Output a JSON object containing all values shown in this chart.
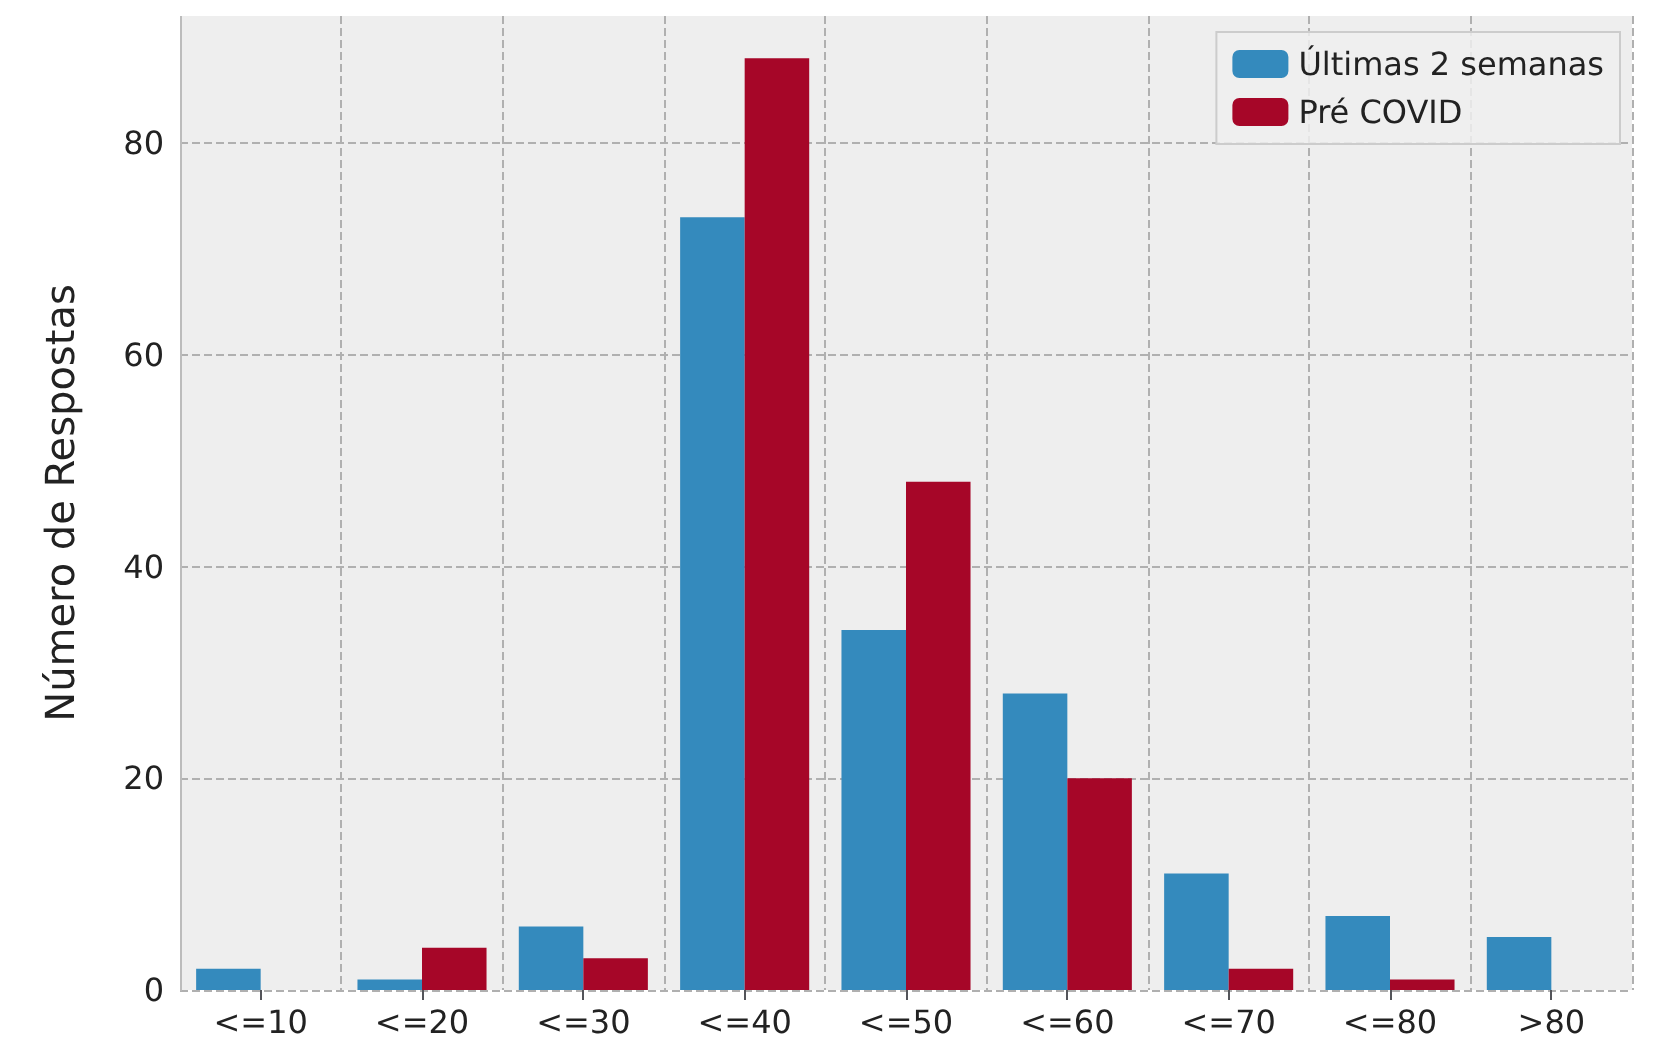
{
  "chart_data": {
    "type": "bar",
    "ylabel": "Número de Respostas",
    "categories": [
      "<=10",
      "<=20",
      "<=30",
      "<=40",
      "<=50",
      "<=60",
      "<=70",
      "<=80",
      ">80"
    ],
    "series": [
      {
        "name": "Últimas 2 semanas",
        "color": "#348abd",
        "values": [
          2,
          1,
          6,
          73,
          34,
          28,
          11,
          7,
          5
        ]
      },
      {
        "name": "Pré COVID",
        "color": "#a60628",
        "values": [
          0,
          4,
          3,
          88,
          48,
          20,
          2,
          1,
          0
        ]
      }
    ],
    "ylim": [
      0,
      92
    ],
    "yticks": [
      0,
      20,
      40,
      60,
      80
    ],
    "grid": true,
    "legend": "top right"
  }
}
